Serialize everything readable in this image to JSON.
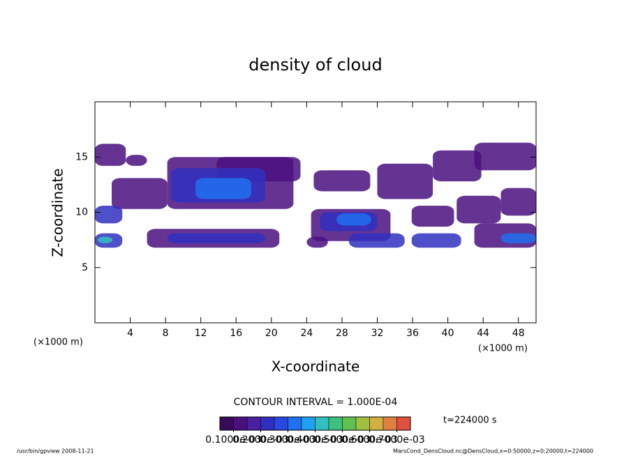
{
  "chart_data": {
    "type": "contour",
    "title": "density of cloud",
    "xlabel": "X-coordinate",
    "ylabel": "Z-coordinate",
    "xunit_left": "(×1000 m)",
    "xunit_right": "(×1000 m)",
    "xlim": [
      0,
      50
    ],
    "ylim": [
      0,
      20
    ],
    "xticks": [
      4,
      8,
      12,
      16,
      20,
      24,
      28,
      32,
      36,
      40,
      44,
      48
    ],
    "yticks": [
      5,
      10,
      15
    ],
    "regions": [
      {
        "x": [
          0,
          3.5
        ],
        "z": [
          14.2,
          16.2
        ],
        "value": 0.0001
      },
      {
        "x": [
          3.5,
          5.9
        ],
        "z": [
          14.2,
          15.2
        ],
        "value": 0.0001
      },
      {
        "x": [
          1.9,
          8.2
        ],
        "z": [
          10.3,
          13.1
        ],
        "value": 0.0001
      },
      {
        "x": [
          8.2,
          22.5
        ],
        "z": [
          10.3,
          15
        ],
        "value": 0.0001
      },
      {
        "x": [
          13.8,
          23.3
        ],
        "z": [
          12.8,
          15
        ],
        "value": 0.0001
      },
      {
        "x": [
          8.6,
          19.3
        ],
        "z": [
          10.9,
          14
        ],
        "value": 0.0002
      },
      {
        "x": [
          11.4,
          17.7
        ],
        "z": [
          11.2,
          13.1
        ],
        "value": 0.0003
      },
      {
        "x": [
          0,
          3.1
        ],
        "z": [
          9,
          10.6
        ],
        "value": 0.0002
      },
      {
        "x": [
          0,
          3.1
        ],
        "z": [
          6.8,
          8.1
        ],
        "value": 0.0002
      },
      {
        "x": [
          0.3,
          2
        ],
        "z": [
          7.2,
          7.8
        ],
        "value": 0.0004
      },
      {
        "x": [
          5.9,
          20.9
        ],
        "z": [
          6.8,
          8.5
        ],
        "value": 0.0001
      },
      {
        "x": [
          8.2,
          19.3
        ],
        "z": [
          7.2,
          8.1
        ],
        "value": 0.0002
      },
      {
        "x": [
          24,
          26.4
        ],
        "z": [
          6.8,
          7.8
        ],
        "value": 0.0001
      },
      {
        "x": [
          24.5,
          33.5
        ],
        "z": [
          7.4,
          10.3
        ],
        "value": 0.0001
      },
      {
        "x": [
          25.5,
          32
        ],
        "z": [
          8.3,
          10
        ],
        "value": 0.0002
      },
      {
        "x": [
          27.4,
          31.3
        ],
        "z": [
          8.8,
          9.9
        ],
        "value": 0.0003
      },
      {
        "x": [
          28.8,
          35.1
        ],
        "z": [
          6.8,
          8.1
        ],
        "value": 0.0002
      },
      {
        "x": [
          35.9,
          41.5
        ],
        "z": [
          6.8,
          8.1
        ],
        "value": 0.0002
      },
      {
        "x": [
          35.9,
          40.7
        ],
        "z": [
          8.7,
          10.6
        ],
        "value": 0.0001
      },
      {
        "x": [
          24.8,
          31.2
        ],
        "z": [
          11.9,
          13.8
        ],
        "value": 0.0001
      },
      {
        "x": [
          32,
          38.3
        ],
        "z": [
          11.2,
          14.4
        ],
        "value": 0.0001
      },
      {
        "x": [
          38.3,
          43.8
        ],
        "z": [
          12.8,
          15.6
        ],
        "value": 0.0001
      },
      {
        "x": [
          43,
          50
        ],
        "z": [
          13.8,
          16.3
        ],
        "value": 0.0001
      },
      {
        "x": [
          43,
          50
        ],
        "z": [
          6.8,
          9
        ],
        "value": 0.0001
      },
      {
        "x": [
          46,
          50
        ],
        "z": [
          7.2,
          8.1
        ],
        "value": 0.0003
      },
      {
        "x": [
          41,
          46
        ],
        "z": [
          9,
          11.5
        ],
        "value": 0.0001
      },
      {
        "x": [
          46,
          50
        ],
        "z": [
          9.7,
          12.2
        ],
        "value": 0.0001
      }
    ],
    "contour_interval": "CONTOUR INTERVAL = 1.000E-04",
    "time_label": "t=224000 s",
    "colorbar": {
      "lim": [
        0.0001,
        0.0007
      ],
      "colors": [
        "#3a0a5a",
        "#4a1080",
        "#4a20a0",
        "#3030c0",
        "#2848e0",
        "#2070f0",
        "#20a0f0",
        "#30c0c0",
        "#40c080",
        "#60c050",
        "#a0c040",
        "#d0b040",
        "#e08040",
        "#e05040"
      ],
      "ticks": [
        {
          "value": 0.0001,
          "label": "0.1000e-03"
        },
        {
          "value": 0.0002,
          "label": "0.2000e-03"
        },
        {
          "value": 0.0003,
          "label": "0.3000e-03"
        },
        {
          "value": 0.0004,
          "label": "0.4000e-03"
        },
        {
          "value": 0.0005,
          "label": "0.5000e-03"
        },
        {
          "value": 0.0006,
          "label": "0.6000e-03"
        },
        {
          "value": 0.0007,
          "label": "0.7000e-03"
        }
      ]
    },
    "footer_left": "/usr/bin/gpview  2008-11-21",
    "footer_right": "MarsCond_DensCloud.nc@DensCloud,x=0:50000,z=0:20000,t=224000"
  }
}
